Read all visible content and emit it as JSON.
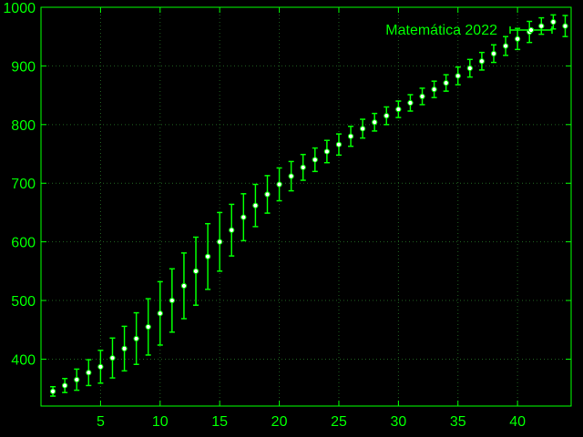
{
  "chart_data": {
    "type": "scatter",
    "title": "",
    "xlabel": "",
    "ylabel": "",
    "xlim": [
      0,
      44.5
    ],
    "ylim": [
      320,
      1000
    ],
    "x_ticks": [
      5,
      10,
      15,
      20,
      25,
      30,
      35,
      40
    ],
    "y_ticks": [
      400,
      500,
      600,
      700,
      800,
      900,
      1000
    ],
    "grid": true,
    "legend_position": "top-right",
    "colors": {
      "background": "#000000",
      "axis": "#00ff00",
      "grid": "#1f5f1f",
      "point_fill": "#ffffff",
      "point_stroke": "#00ff00"
    },
    "series": [
      {
        "name": "Matemática 2022",
        "x": [
          1,
          2,
          3,
          4,
          5,
          6,
          7,
          8,
          9,
          10,
          11,
          12,
          13,
          14,
          15,
          16,
          17,
          18,
          19,
          20,
          21,
          22,
          23,
          24,
          25,
          26,
          27,
          28,
          29,
          30,
          31,
          32,
          33,
          34,
          35,
          36,
          37,
          38,
          39,
          40,
          41,
          42,
          43,
          44
        ],
        "y": [
          345,
          355,
          365,
          377,
          387,
          402,
          418,
          435,
          455,
          478,
          500,
          525,
          550,
          575,
          600,
          620,
          642,
          662,
          681,
          698,
          712,
          727,
          740,
          754,
          766,
          780,
          793,
          804,
          815,
          826,
          837,
          848,
          860,
          871,
          883,
          896,
          908,
          921,
          934,
          946,
          958,
          968,
          975,
          968
        ],
        "err": [
          8,
          12,
          18,
          22,
          28,
          34,
          38,
          44,
          48,
          54,
          54,
          56,
          58,
          56,
          50,
          44,
          40,
          36,
          32,
          28,
          25,
          22,
          20,
          19,
          18,
          17,
          16,
          15,
          15,
          14,
          14,
          14,
          14,
          14,
          15,
          15,
          15,
          15,
          16,
          18,
          18,
          14,
          12,
          18
        ]
      }
    ]
  }
}
